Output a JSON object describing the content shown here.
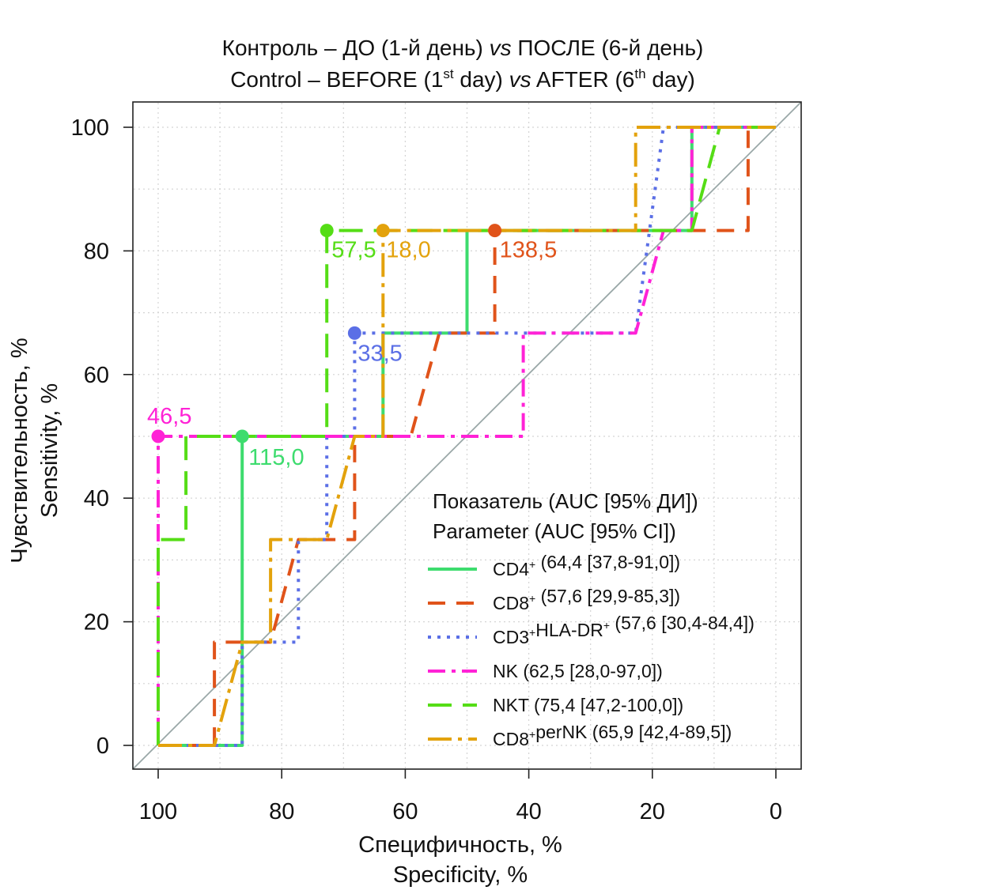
{
  "chart_data": {
    "type": "line",
    "title_ru": "Контроль – ДО (1-й день) vs ПОСЛЕ (6-й день)",
    "title_en": "Control – BEFORE (1st day) vs AFTER (6th day)",
    "title_parts": {
      "ru_prefix": "Контроль – ДО (1-й день) ",
      "vs": "vs",
      "ru_suffix": " ПОСЛЕ (6-й день)",
      "en_prefix": "Control – BEFORE (1",
      "st": "st",
      "en_mid": " day) ",
      "en_mid2": " AFTER (6",
      "th": "th",
      "en_suffix": " day)"
    },
    "xlabel_ru": "Специфичность, %",
    "xlabel_en": "Specificity, %",
    "ylabel_ru": "Чувствительность, %",
    "ylabel_en": "Sensitivity, %",
    "xlim": [
      100,
      0
    ],
    "ylim": [
      0,
      100
    ],
    "x_ticks": [
      100,
      80,
      60,
      40,
      20,
      0
    ],
    "y_ticks": [
      0,
      20,
      40,
      60,
      80,
      100
    ],
    "grid": true,
    "legend": {
      "position": "bottom-right",
      "title_ru": "Показатель (AUC [95% ДИ])",
      "title_en": "Parameter (AUC [95% CI])"
    },
    "series": [
      {
        "name": "CD4⁺ (64,4 [37,8-91,0])",
        "marker": "CD4",
        "color": "#3ddc6e",
        "dash": "none",
        "points": [
          [
            100,
            0
          ],
          [
            86.4,
            0
          ],
          [
            86.4,
            50
          ],
          [
            72.7,
            50
          ],
          [
            68.2,
            50
          ],
          [
            63.6,
            50
          ],
          [
            63.6,
            66.7
          ],
          [
            50,
            66.7
          ],
          [
            50,
            83.3
          ],
          [
            13.6,
            83.3
          ],
          [
            13.6,
            100
          ],
          [
            0,
            100
          ]
        ],
        "threshold": {
          "label": "115,0",
          "x": 86.4,
          "y": 50
        }
      },
      {
        "name": "CD8⁺ (57,6 [29,9-85,3])",
        "marker": "CD8",
        "color": "#e0531a",
        "dash": "22,14",
        "points": [
          [
            100,
            0
          ],
          [
            90.9,
            0
          ],
          [
            90.9,
            16.7
          ],
          [
            81.8,
            16.7
          ],
          [
            77.3,
            33.3
          ],
          [
            68.2,
            33.3
          ],
          [
            68.2,
            50
          ],
          [
            59.1,
            50
          ],
          [
            54.5,
            66.7
          ],
          [
            45.5,
            66.7
          ],
          [
            45.5,
            83.3
          ],
          [
            4.5,
            83.3
          ],
          [
            4.5,
            100
          ],
          [
            0,
            100
          ]
        ],
        "threshold": {
          "label": "138,5",
          "x": 45.5,
          "y": 83.3
        }
      },
      {
        "name": "CD3⁺HLA-DR⁺ (57,6 [30,4-84,4])",
        "marker": "CD3HLA",
        "color": "#5b6fe6",
        "dash": "4,8",
        "points": [
          [
            100,
            0
          ],
          [
            86.4,
            0
          ],
          [
            86.4,
            16.7
          ],
          [
            77.3,
            16.7
          ],
          [
            77.3,
            33.3
          ],
          [
            72.7,
            33.3
          ],
          [
            72.7,
            50
          ],
          [
            68.2,
            50
          ],
          [
            68.2,
            66.7
          ],
          [
            22.7,
            66.7
          ],
          [
            18.2,
            100
          ],
          [
            0,
            100
          ]
        ],
        "threshold": {
          "label": "33,5",
          "x": 68.2,
          "y": 66.7
        }
      },
      {
        "name": "NK (62,5 [28,0-97,0])",
        "marker": "NK",
        "color": "#ff22d6",
        "dash": "22,8,5,8",
        "points": [
          [
            100,
            0
          ],
          [
            100,
            50
          ],
          [
            40.9,
            50
          ],
          [
            40.9,
            66.7
          ],
          [
            22.7,
            66.7
          ],
          [
            18.2,
            83.3
          ],
          [
            13.6,
            83.3
          ],
          [
            13.6,
            100
          ],
          [
            0,
            100
          ]
        ],
        "threshold": {
          "label": "46,5",
          "x": 100,
          "y": 50
        }
      },
      {
        "name": "NKT (75,4 [47,2-100,0])",
        "marker": "NKT",
        "color": "#55dd16",
        "dash": "30,14",
        "points": [
          [
            100,
            0
          ],
          [
            100,
            33.3
          ],
          [
            95.5,
            33.3
          ],
          [
            95.5,
            50
          ],
          [
            72.7,
            50
          ],
          [
            72.7,
            83.3
          ],
          [
            13.6,
            83.3
          ],
          [
            9.1,
            100
          ],
          [
            0,
            100
          ]
        ],
        "threshold": {
          "label": "57,5",
          "x": 72.7,
          "y": 83.3
        }
      },
      {
        "name": "CD8⁺perNK (65,9 [42,4-89,5])",
        "marker": "CD8perNK",
        "color": "#e3a20c",
        "dash": "30,8,5,8",
        "points": [
          [
            100,
            0
          ],
          [
            90.9,
            0
          ],
          [
            86.4,
            16.7
          ],
          [
            81.8,
            16.7
          ],
          [
            81.8,
            33.3
          ],
          [
            72.7,
            33.3
          ],
          [
            68.2,
            50
          ],
          [
            63.6,
            50
          ],
          [
            63.6,
            83.3
          ],
          [
            22.7,
            83.3
          ],
          [
            22.7,
            100
          ],
          [
            0,
            100
          ]
        ],
        "threshold": {
          "label": "18,0",
          "x": 63.6,
          "y": 83.3
        }
      }
    ],
    "legend_entries": [
      {
        "main": "CD4",
        "sup": "+",
        "rest": " (64,4 [37,8-91,0])"
      },
      {
        "main": "CD8",
        "sup": "+",
        "rest": " (57,6 [29,9-85,3])"
      },
      {
        "main": "CD3",
        "sup": "+",
        "main2": "HLA-DR",
        "sup2": "+",
        "rest": " (57,6 [30,4-84,4])"
      },
      {
        "main": "NK",
        "sup": "",
        "rest": " (62,5 [28,0-97,0])"
      },
      {
        "main": "NKT",
        "sup": "",
        "rest": " (75,4 [47,2-100,0])"
      },
      {
        "main": "CD8",
        "sup": "+",
        "main2": "perNK",
        "sup2": "",
        "rest": " (65,9 [42,4-89,5])"
      }
    ]
  }
}
